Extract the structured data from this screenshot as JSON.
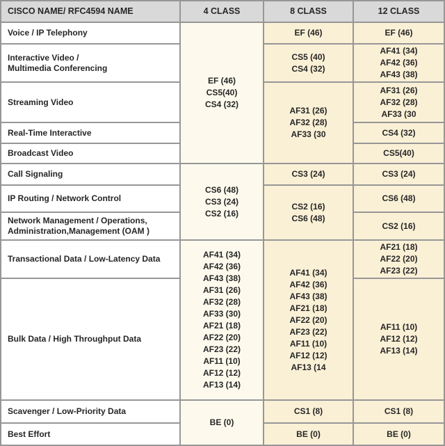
{
  "title": "QoS class model mapping table",
  "colors": {
    "header_bg": "#d9d9d9",
    "col_4class_bg": "#fdfaed",
    "col_8class_bg": "#faf0d6",
    "col_12class_bg": "#faf0d6",
    "row_label_bg": "#ffffff",
    "grid_line": "#969696",
    "text": "#262626"
  },
  "header": {
    "col1": "CISCO NAME/ RFC4594 NAME",
    "col2": "4 CLASS",
    "col3": "8 CLASS",
    "col4": "12 CLASS"
  },
  "labels": {
    "voice": "Voice / IP Telephony",
    "interactive": [
      "Interactive Video /",
      "Multimedia Conferencing"
    ],
    "streaming": "Streaming Video",
    "realtime": "Real-Time Interactive",
    "broadcast": "Broadcast Video",
    "call_signaling": "Call Signaling",
    "ip_routing": "IP Routing / Network Control",
    "net_mgmt": [
      "Network Management / Operations,",
      "Administration,Management (OAM )"
    ],
    "transactional": "Transactional Data / Low-Latency Data",
    "bulk": "Bulk Data / High Throughput Data",
    "scavenger": "Scavenger / Low-Priority Data",
    "best_effort": "Best Effort"
  },
  "class4": {
    "media_group": [
      "EF (46)",
      "CS5(40)",
      "CS4 (32)"
    ],
    "control_group": [
      "CS6 (48)",
      "CS3 (24)",
      "CS2 (16)"
    ],
    "data_group": [
      "AF41 (34)",
      "AF42 (36)",
      "AF43 (38)",
      "AF31 (26)",
      "AF32 (28)",
      "AF33 (30)",
      "AF21 (18)",
      "AF22 (20)",
      "AF23 (22)",
      "AF11 (10)",
      "AF12 (12)",
      "AF13 (14)"
    ],
    "default_group": [
      "BE (0)"
    ]
  },
  "class8": {
    "voice": [
      "EF (46)"
    ],
    "interactive": [
      "CS5 (40)",
      "CS4 (32)"
    ],
    "video_group": [
      "AF31 (26)",
      "AF32 (28)",
      "AF33 (30"
    ],
    "call_signaling": [
      "CS3 (24)"
    ],
    "control_group": [
      "CS2 (16)",
      "CS6 (48)"
    ],
    "data_group": [
      "AF41 (34)",
      "AF42 (36)",
      "AF43 (38)",
      "AF21 (18)",
      "AF22 (20)",
      "AF23 (22)",
      "AF11 (10)",
      "AF12 (12)",
      "AF13 (14"
    ],
    "scavenger": [
      "CS1 (8)"
    ],
    "best_effort": [
      "BE (0)"
    ]
  },
  "class12": {
    "voice": [
      "EF (46)"
    ],
    "interactive": [
      "AF41 (34)",
      "AF42 (36)",
      "AF43 (38)"
    ],
    "streaming": [
      "AF31 (26)",
      "AF32 (28)",
      "AF33 (30"
    ],
    "realtime": [
      "CS4 (32)"
    ],
    "broadcast": [
      "CS5(40)"
    ],
    "call_signaling": [
      "CS3 (24)"
    ],
    "ip_routing": [
      "CS6 (48)"
    ],
    "net_mgmt": [
      "CS2 (16)"
    ],
    "transactional": [
      "AF21 (18)",
      "AF22 (20)",
      "AF23 (22)"
    ],
    "bulk": [
      "AF11 (10)",
      "AF12 (12)",
      "AF13 (14)"
    ],
    "scavenger": [
      "CS1 (8)"
    ],
    "best_effort": [
      "BE (0)"
    ]
  }
}
